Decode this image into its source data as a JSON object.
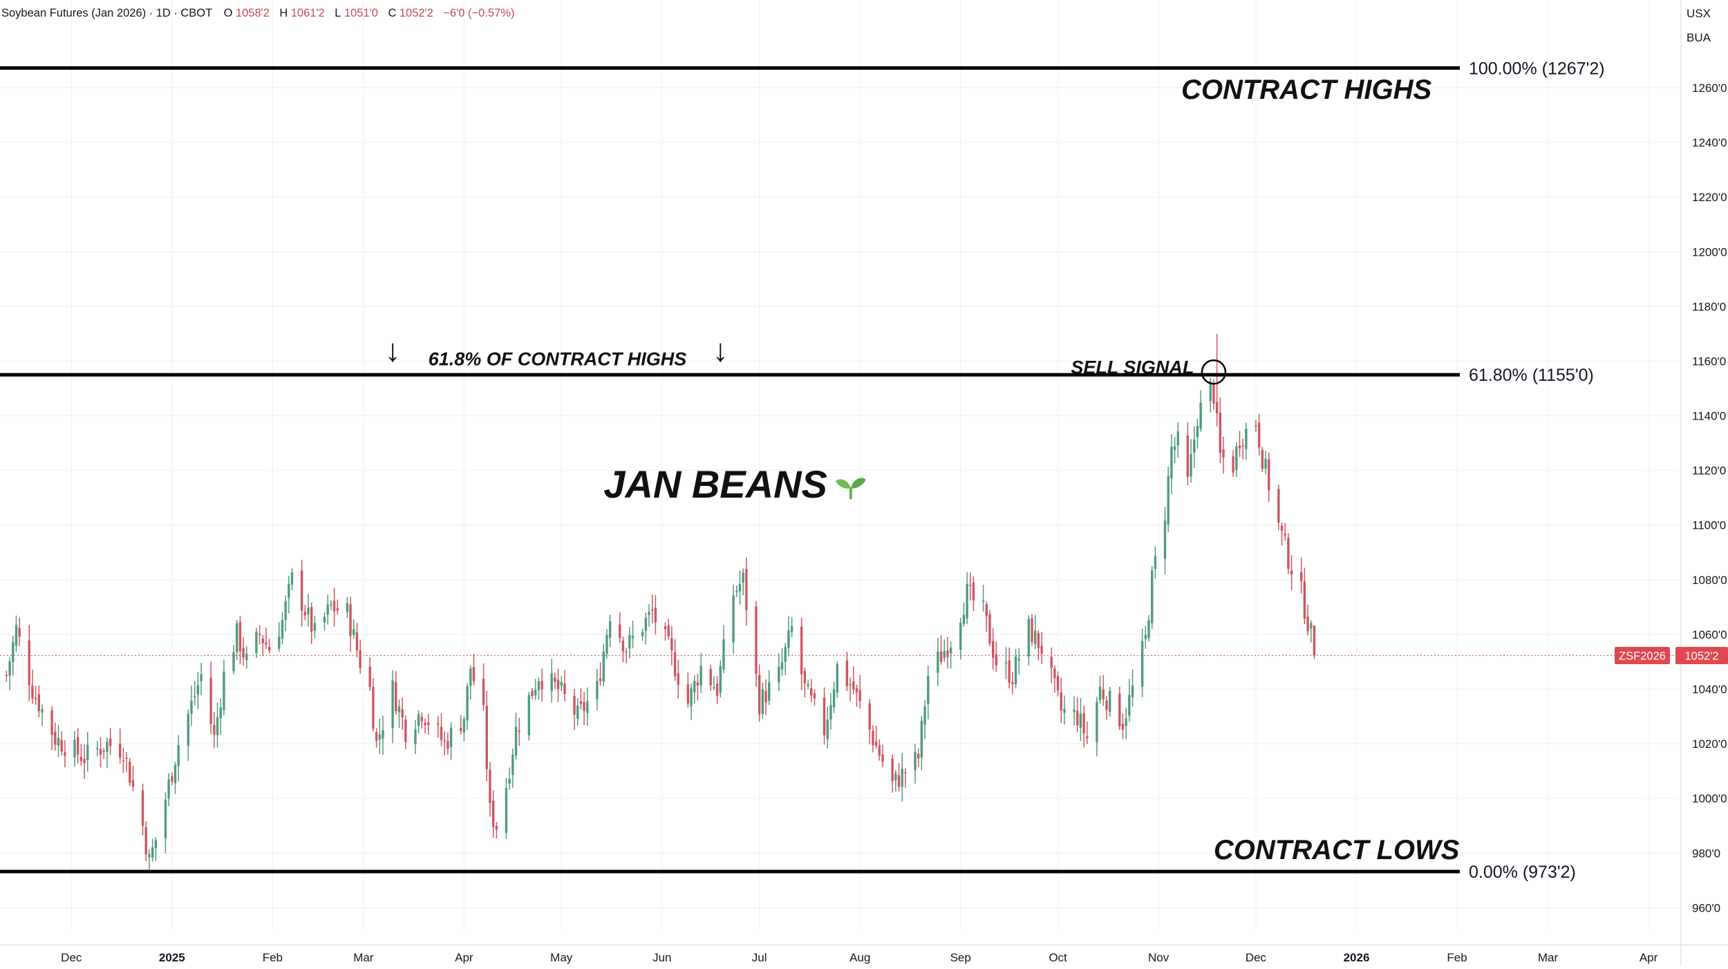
{
  "header": {
    "symbol_name": "Soybean Futures (Jan 2026)",
    "interval": "1D",
    "exchange": "CBOT",
    "open_label": "O",
    "open": "1058'2",
    "high_label": "H",
    "high": "1061'2",
    "low_label": "L",
    "low": "1051'0",
    "close_label": "C",
    "close": "1052'2",
    "change": "−6'0 (−0.57%)"
  },
  "units": {
    "currency": "USX",
    "unit": "BUA"
  },
  "price_badge": {
    "ticker": "ZSF2026",
    "price": "1052'2"
  },
  "annotations": {
    "contract_highs": "CONTRACT HIGHS",
    "contract_lows": "CONTRACT LOWS",
    "fib_618_note": "61.8% OF CONTRACT HIGHS",
    "sell_signal": "SELL SIGNAL",
    "title": "JAN BEANS",
    "arrow_down": "↓"
  },
  "colors": {
    "up": "#4f9a7e",
    "down": "#d0555d",
    "badge": "#e0474f",
    "grid": "#f0f1f4",
    "line": "#000000",
    "sprout": "#5aa84a"
  },
  "chart_data": {
    "type": "candlestick",
    "symbol": "ZSF2026",
    "ylim": [
      952,
      1282
    ],
    "y_ticks": [
      960,
      980,
      1000,
      1020,
      1040,
      1060,
      1080,
      1100,
      1120,
      1140,
      1160,
      1180,
      1200,
      1220,
      1240,
      1260
    ],
    "y_tick_labels": [
      "960'0",
      "980'0",
      "1000'0",
      "1020'0",
      "1040'0",
      "1060'0",
      "1080'0",
      "1100'0",
      "1120'0",
      "1140'0",
      "1160'0",
      "1180'0",
      "1200'0",
      "1220'0",
      "1240'0",
      "1260'0"
    ],
    "x_start": "2024-11-09",
    "x_end": "2026-04-11",
    "x_ticks": [
      {
        "date": "2024-12-01",
        "label": "Dec",
        "bold": false
      },
      {
        "date": "2025-01-01",
        "label": "2025",
        "bold": true
      },
      {
        "date": "2025-02-01",
        "label": "Feb",
        "bold": false
      },
      {
        "date": "2025-03-01",
        "label": "Mar",
        "bold": false
      },
      {
        "date": "2025-04-01",
        "label": "Apr",
        "bold": false
      },
      {
        "date": "2025-05-01",
        "label": "May",
        "bold": false
      },
      {
        "date": "2025-06-01",
        "label": "Jun",
        "bold": false
      },
      {
        "date": "2025-07-01",
        "label": "Jul",
        "bold": false
      },
      {
        "date": "2025-08-01",
        "label": "Aug",
        "bold": false
      },
      {
        "date": "2025-09-01",
        "label": "Sep",
        "bold": false
      },
      {
        "date": "2025-10-01",
        "label": "Oct",
        "bold": false
      },
      {
        "date": "2025-11-01",
        "label": "Nov",
        "bold": false
      },
      {
        "date": "2025-12-01",
        "label": "Dec",
        "bold": false
      },
      {
        "date": "2026-01-01",
        "label": "2026",
        "bold": true
      },
      {
        "date": "2026-02-01",
        "label": "Feb",
        "bold": false
      },
      {
        "date": "2026-03-01",
        "label": "Mar",
        "bold": false
      },
      {
        "date": "2026-04-01",
        "label": "Apr",
        "bold": false
      }
    ],
    "first_bar_date": "2024-11-11",
    "waypoints": [
      [
        "2024-11-11",
        1045
      ],
      [
        "2024-11-14",
        1062
      ],
      [
        "2024-11-19",
        1040
      ],
      [
        "2024-11-26",
        1022
      ],
      [
        "2024-12-05",
        1015
      ],
      [
        "2024-12-12",
        1020
      ],
      [
        "2024-12-17",
        1018
      ],
      [
        "2024-12-23",
        990
      ],
      [
        "2024-12-25",
        977
      ],
      [
        "2024-12-27",
        985
      ],
      [
        "2025-01-03",
        1020
      ],
      [
        "2025-01-10",
        1045
      ],
      [
        "2025-01-14",
        1022
      ],
      [
        "2025-01-17",
        1045
      ],
      [
        "2025-01-21",
        1060
      ],
      [
        "2025-01-24",
        1050
      ],
      [
        "2025-01-28",
        1060
      ],
      [
        "2025-01-31",
        1055
      ],
      [
        "2025-02-04",
        1065
      ],
      [
        "2025-02-07",
        1080
      ],
      [
        "2025-02-10",
        1072
      ],
      [
        "2025-02-14",
        1060
      ],
      [
        "2025-02-19",
        1070
      ],
      [
        "2025-02-24",
        1068
      ],
      [
        "2025-02-28",
        1050
      ],
      [
        "2025-03-03",
        1040
      ],
      [
        "2025-03-05",
        1020
      ],
      [
        "2025-03-10",
        1040
      ],
      [
        "2025-03-14",
        1025
      ],
      [
        "2025-03-19",
        1032
      ],
      [
        "2025-03-26",
        1020
      ],
      [
        "2025-04-01",
        1030
      ],
      [
        "2025-04-03",
        1048
      ],
      [
        "2025-04-07",
        1030
      ],
      [
        "2025-04-09",
        995
      ],
      [
        "2025-04-11",
        990
      ],
      [
        "2025-04-14",
        1005
      ],
      [
        "2025-04-17",
        1025
      ],
      [
        "2025-04-24",
        1045
      ],
      [
        "2025-04-30",
        1040
      ],
      [
        "2025-05-06",
        1030
      ],
      [
        "2025-05-12",
        1040
      ],
      [
        "2025-05-16",
        1068
      ],
      [
        "2025-05-21",
        1055
      ],
      [
        "2025-05-29",
        1068
      ],
      [
        "2025-06-03",
        1055
      ],
      [
        "2025-06-09",
        1035
      ],
      [
        "2025-06-13",
        1048
      ],
      [
        "2025-06-18",
        1040
      ],
      [
        "2025-06-23",
        1075
      ],
      [
        "2025-06-26",
        1080
      ],
      [
        "2025-07-01",
        1035
      ],
      [
        "2025-07-07",
        1045
      ],
      [
        "2025-07-11",
        1062
      ],
      [
        "2025-07-15",
        1040
      ],
      [
        "2025-07-21",
        1025
      ],
      [
        "2025-07-25",
        1048
      ],
      [
        "2025-07-30",
        1040
      ],
      [
        "2025-08-05",
        1022
      ],
      [
        "2025-08-11",
        1005
      ],
      [
        "2025-08-15",
        1010
      ],
      [
        "2025-08-19",
        1015
      ],
      [
        "2025-08-22",
        1045
      ],
      [
        "2025-08-29",
        1058
      ],
      [
        "2025-09-03",
        1075
      ],
      [
        "2025-09-08",
        1068
      ],
      [
        "2025-09-12",
        1050
      ],
      [
        "2025-09-17",
        1045
      ],
      [
        "2025-09-22",
        1062
      ],
      [
        "2025-09-26",
        1055
      ],
      [
        "2025-10-02",
        1032
      ],
      [
        "2025-10-07",
        1030
      ],
      [
        "2025-10-10",
        1022
      ],
      [
        "2025-10-14",
        1040
      ],
      [
        "2025-10-17",
        1035
      ],
      [
        "2025-10-21",
        1028
      ],
      [
        "2025-10-24",
        1040
      ],
      [
        "2025-10-28",
        1058
      ],
      [
        "2025-10-30",
        1080
      ],
      [
        "2025-11-03",
        1105
      ],
      [
        "2025-11-05",
        1128
      ],
      [
        "2025-11-07",
        1130
      ],
      [
        "2025-11-10",
        1115
      ],
      [
        "2025-11-13",
        1140
      ],
      [
        "2025-11-17",
        1150
      ],
      [
        "2025-11-18",
        1148
      ],
      [
        "2025-11-20",
        1125
      ],
      [
        "2025-11-24",
        1122
      ],
      [
        "2025-11-26",
        1132
      ],
      [
        "2025-12-01",
        1138
      ],
      [
        "2025-12-03",
        1125
      ],
      [
        "2025-12-08",
        1100
      ],
      [
        "2025-12-11",
        1088
      ],
      [
        "2025-12-15",
        1075
      ],
      [
        "2025-12-18",
        1060
      ],
      [
        "2025-12-19",
        1052.25
      ]
    ],
    "fib_levels": [
      {
        "level": "100.00%",
        "value": 1267.25,
        "label": "100.00% (1267'2)"
      },
      {
        "level": "61.80%",
        "value": 1155,
        "label": "61.80% (1155'0)"
      },
      {
        "level": "0.00%",
        "value": 973.25,
        "label": "0.00% (973'2)"
      }
    ],
    "last_price": 1052.25,
    "sell_signal_date": "2025-11-18",
    "sell_signal_value": 1156,
    "annotation_dates": {
      "arrow_left": "2025-03-10",
      "arrow_right": "2025-06-19",
      "fib_note_start": "2025-03-21",
      "sell_signal_text_start": "2025-10-05",
      "contract_highs_text_start": "2025-11-08",
      "contract_lows_text_start": "2025-11-18",
      "title_start": "2025-05-14"
    },
    "annotation_values": {
      "arrow": 1160,
      "fib_note": 1158.5,
      "sell_signal_text": 1155.5,
      "contract_highs_text": 1256,
      "contract_lows_text": 977.8,
      "title": 1110
    },
    "grid": true
  }
}
